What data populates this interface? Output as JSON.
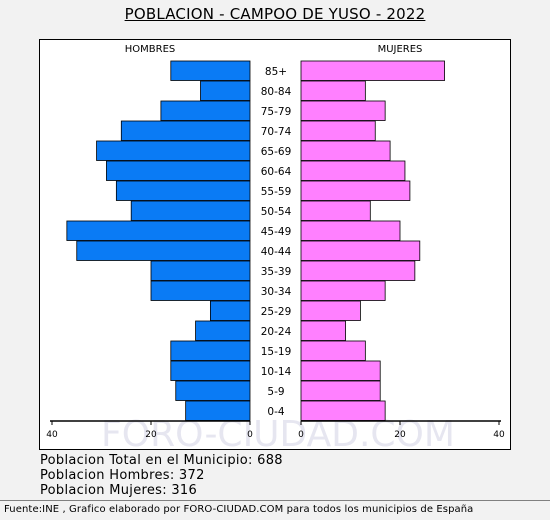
{
  "title": "POBLACION - CAMPOO DE YUSO - 2022",
  "watermark": "FORO-CIUDAD.COM",
  "stats": {
    "total": "Poblacion Total en el Municipio: 688",
    "hombres": "Poblacion Hombres: 372",
    "mujeres": "Poblacion Mujeres: 316"
  },
  "footer": "Fuente:INE , Grafico elaborado por FORO-CIUDAD.COM para todos los municipios de España",
  "chart_data": {
    "type": "bar",
    "orientation": "horizontal-population-pyramid",
    "categories": [
      "85+",
      "80-84",
      "75-79",
      "70-74",
      "65-69",
      "60-64",
      "55-59",
      "50-54",
      "45-49",
      "40-44",
      "35-39",
      "30-34",
      "25-29",
      "20-24",
      "15-19",
      "10-14",
      "5-9",
      "0-4"
    ],
    "series": [
      {
        "name": "HOMBRES",
        "color": "#0a7bf5",
        "values": [
          16,
          10,
          18,
          26,
          31,
          29,
          27,
          24,
          37,
          35,
          20,
          20,
          8,
          11,
          16,
          16,
          15,
          13
        ]
      },
      {
        "name": "MUJERES",
        "color": "#ff80ff",
        "values": [
          29,
          13,
          17,
          15,
          18,
          21,
          22,
          14,
          20,
          24,
          23,
          17,
          12,
          9,
          13,
          16,
          16,
          17
        ]
      }
    ],
    "x_ticks": [
      "40",
      "20",
      "0",
      "0",
      "20",
      "40"
    ],
    "xlim": [
      0,
      40
    ],
    "grid": false
  }
}
